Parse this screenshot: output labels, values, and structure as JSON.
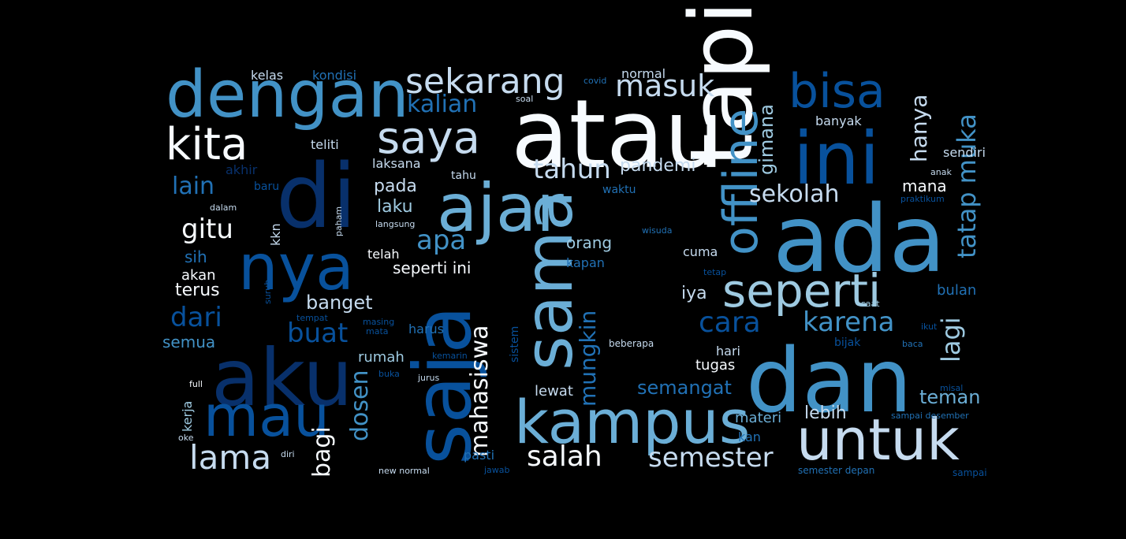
{
  "palette": {
    "white": "#f7fbff",
    "pale": "#c6dbef",
    "light": "#9ecae1",
    "mid": "#6baed6",
    "blue": "#4292c6",
    "strong": "#2171b5",
    "dark": "#08519c",
    "navy": "#08306b",
    "background": "#000000"
  },
  "words": [
    {
      "text": "atau",
      "weight": 1.0,
      "color": "white"
    },
    {
      "text": "ada",
      "weight": 0.98,
      "color": "blue"
    },
    {
      "text": "tapi",
      "weight": 0.98,
      "color": "white"
    },
    {
      "text": "di",
      "weight": 0.92,
      "color": "navy"
    },
    {
      "text": "dan",
      "weight": 0.9,
      "color": "blue"
    },
    {
      "text": "saja",
      "weight": 0.86,
      "color": "dark"
    },
    {
      "text": "aku",
      "weight": 0.82,
      "color": "navy"
    },
    {
      "text": "ini",
      "weight": 0.8,
      "color": "dark"
    },
    {
      "text": "ajar",
      "weight": 0.76,
      "color": "mid"
    },
    {
      "text": "dengan",
      "weight": 0.74,
      "color": "blue"
    },
    {
      "text": "nya",
      "weight": 0.72,
      "color": "dark"
    },
    {
      "text": "sama",
      "weight": 0.7,
      "color": "mid"
    },
    {
      "text": "kampus",
      "weight": 0.66,
      "color": "mid"
    },
    {
      "text": "untuk",
      "weight": 0.64,
      "color": "pale"
    },
    {
      "text": "mau",
      "weight": 0.62,
      "color": "dark"
    },
    {
      "text": "offline",
      "weight": 0.58,
      "color": "blue"
    },
    {
      "text": "seperti",
      "weight": 0.56,
      "color": "light"
    },
    {
      "text": "bisa",
      "weight": 0.55,
      "color": "dark"
    },
    {
      "text": "saya",
      "weight": 0.52,
      "color": "pale"
    },
    {
      "text": "kita",
      "weight": 0.52,
      "color": "white"
    },
    {
      "text": "sekarang",
      "weight": 0.42,
      "color": "pale"
    },
    {
      "text": "lama",
      "weight": 0.4,
      "color": "pale"
    },
    {
      "text": "salah",
      "weight": 0.36,
      "color": "white"
    },
    {
      "text": "semester",
      "weight": 0.36,
      "color": "pale"
    },
    {
      "text": "masuk",
      "weight": 0.34,
      "color": "pale"
    },
    {
      "text": "tahun",
      "weight": 0.34,
      "color": "pale"
    },
    {
      "text": "karena",
      "weight": 0.34,
      "color": "blue"
    },
    {
      "text": "cara",
      "weight": 0.33,
      "color": "dark"
    },
    {
      "text": "lagi",
      "weight": 0.33,
      "color": "light"
    },
    {
      "text": "tatap muka",
      "weight": 0.32,
      "color": "blue"
    },
    {
      "text": "mahasiswa",
      "weight": 0.32,
      "color": "white"
    },
    {
      "text": "apa",
      "weight": 0.32,
      "color": "blue"
    },
    {
      "text": "dari",
      "weight": 0.31,
      "color": "dark"
    },
    {
      "text": "buat",
      "weight": 0.31,
      "color": "dark"
    },
    {
      "text": "mungkin",
      "weight": 0.31,
      "color": "strong"
    },
    {
      "text": "dosen",
      "weight": 0.31,
      "color": "blue"
    },
    {
      "text": "hanya",
      "weight": 0.3,
      "color": "pale"
    },
    {
      "text": "kalian",
      "weight": 0.28,
      "color": "strong"
    },
    {
      "text": "gitu",
      "weight": 0.3,
      "color": "white"
    },
    {
      "text": "lain",
      "weight": 0.3,
      "color": "strong"
    },
    {
      "text": "bagi",
      "weight": 0.29,
      "color": "white"
    },
    {
      "text": "sekolah",
      "weight": 0.28,
      "color": "pale"
    },
    {
      "text": "gimana",
      "weight": 0.25,
      "color": "light"
    },
    {
      "text": "semangat",
      "weight": 0.22,
      "color": "strong"
    },
    {
      "text": "pandemi",
      "weight": 0.2,
      "color": "pale"
    },
    {
      "text": "banget",
      "weight": 0.2,
      "color": "pale"
    },
    {
      "text": "teman",
      "weight": 0.2,
      "color": "mid"
    },
    {
      "text": "lebih",
      "weight": 0.18,
      "color": "pale"
    },
    {
      "text": "iya",
      "weight": 0.18,
      "color": "pale"
    },
    {
      "text": "terus",
      "weight": 0.18,
      "color": "white"
    },
    {
      "text": "pada",
      "weight": 0.17,
      "color": "pale"
    },
    {
      "text": "laku",
      "weight": 0.17,
      "color": "light"
    },
    {
      "text": "mana",
      "weight": 0.17,
      "color": "white"
    },
    {
      "text": "orang",
      "weight": 0.17,
      "color": "light"
    },
    {
      "text": "semua",
      "weight": 0.17,
      "color": "blue"
    },
    {
      "text": "seperti ini",
      "weight": 0.17,
      "color": "white"
    },
    {
      "text": "sih",
      "weight": 0.17,
      "color": "strong"
    },
    {
      "text": "tugas",
      "weight": 0.15,
      "color": "white"
    },
    {
      "text": "lewat",
      "weight": 0.15,
      "color": "pale"
    },
    {
      "text": "materi",
      "weight": 0.15,
      "color": "mid"
    },
    {
      "text": "akan",
      "weight": 0.15,
      "color": "white"
    },
    {
      "text": "rumah",
      "weight": 0.15,
      "color": "light"
    },
    {
      "text": "bulan",
      "weight": 0.15,
      "color": "strong"
    },
    {
      "text": "telah",
      "weight": 0.14,
      "color": "white"
    },
    {
      "text": "banyak",
      "weight": 0.14,
      "color": "pale"
    },
    {
      "text": "teliti",
      "weight": 0.14,
      "color": "pale"
    },
    {
      "text": "cuma",
      "weight": 0.13,
      "color": "pale"
    },
    {
      "text": "kapan",
      "weight": 0.13,
      "color": "strong"
    },
    {
      "text": "pasti",
      "weight": 0.13,
      "color": "strong"
    },
    {
      "text": "laksana",
      "weight": 0.13,
      "color": "pale"
    },
    {
      "text": "normal",
      "weight": 0.13,
      "color": "pale"
    },
    {
      "text": "kondisi",
      "weight": 0.13,
      "color": "strong"
    },
    {
      "text": "kelas",
      "weight": 0.13,
      "color": "pale"
    },
    {
      "text": "akhir",
      "weight": 0.13,
      "color": "navy"
    },
    {
      "text": "sendiri",
      "weight": 0.13,
      "color": "pale"
    },
    {
      "text": "harus",
      "weight": 0.13,
      "color": "strong"
    },
    {
      "text": "bijak",
      "weight": 0.13,
      "color": "dark"
    },
    {
      "text": "hari",
      "weight": 0.12,
      "color": "pale"
    },
    {
      "text": "kan",
      "weight": 0.13,
      "color": "strong"
    },
    {
      "text": "waktu",
      "weight": 0.13,
      "color": "strong"
    },
    {
      "text": "tahu",
      "weight": 0.11,
      "color": "pale"
    },
    {
      "text": "baru",
      "weight": 0.12,
      "color": "dark"
    },
    {
      "text": "kkn",
      "weight": 0.12,
      "color": "pale"
    },
    {
      "text": "kerja",
      "weight": 0.12,
      "color": "light"
    },
    {
      "text": "sistem",
      "weight": 0.12,
      "color": "dark"
    },
    {
      "text": "sampai",
      "weight": 0.11,
      "color": "dark"
    },
    {
      "text": "wisuda",
      "weight": 0.09,
      "color": "strong"
    },
    {
      "text": "beberapa",
      "weight": 0.09,
      "color": "pale"
    },
    {
      "text": "semester depan",
      "weight": 0.08,
      "color": "strong"
    },
    {
      "text": "sampai desember",
      "weight": 0.08,
      "color": "strong"
    },
    {
      "text": "praktikum",
      "weight": 0.08,
      "color": "dark"
    },
    {
      "text": "langsung",
      "weight": 0.08,
      "color": "pale"
    },
    {
      "text": "new normal",
      "weight": 0.08,
      "color": "pale"
    },
    {
      "text": "jawab",
      "weight": 0.08,
      "color": "dark"
    },
    {
      "text": "covid",
      "weight": 0.08,
      "color": "strong"
    },
    {
      "text": "soal",
      "weight": 0.08,
      "color": "pale"
    },
    {
      "text": "tempat",
      "weight": 0.08,
      "color": "dark"
    },
    {
      "text": "masing",
      "weight": 0.08,
      "color": "dark"
    },
    {
      "text": "mata",
      "weight": 0.08,
      "color": "dark"
    },
    {
      "text": "buka",
      "weight": 0.08,
      "color": "dark"
    },
    {
      "text": "jurus",
      "weight": 0.08,
      "color": "pale"
    },
    {
      "text": "kemarin",
      "weight": 0.08,
      "color": "dark"
    },
    {
      "text": "full",
      "weight": 0.08,
      "color": "white"
    },
    {
      "text": "oke",
      "weight": 0.08,
      "color": "pale"
    },
    {
      "text": "diri",
      "weight": 0.08,
      "color": "pale"
    },
    {
      "text": "dalam",
      "weight": 0.08,
      "color": "pale"
    },
    {
      "text": "paham",
      "weight": 0.08,
      "color": "pale"
    },
    {
      "text": "suruh",
      "weight": 0.08,
      "color": "dark"
    },
    {
      "text": "tetap",
      "weight": 0.08,
      "color": "dark"
    },
    {
      "text": "saat",
      "weight": 0.08,
      "color": "light"
    },
    {
      "text": "ikut",
      "weight": 0.08,
      "color": "dark"
    },
    {
      "text": "baca",
      "weight": 0.08,
      "color": "strong"
    },
    {
      "text": "misal",
      "weight": 0.08,
      "color": "dark"
    },
    {
      "text": "anak",
      "weight": 0.08,
      "color": "pale"
    },
    {
      "text": "kata",
      "weight": 0.08,
      "color": "dark"
    }
  ]
}
